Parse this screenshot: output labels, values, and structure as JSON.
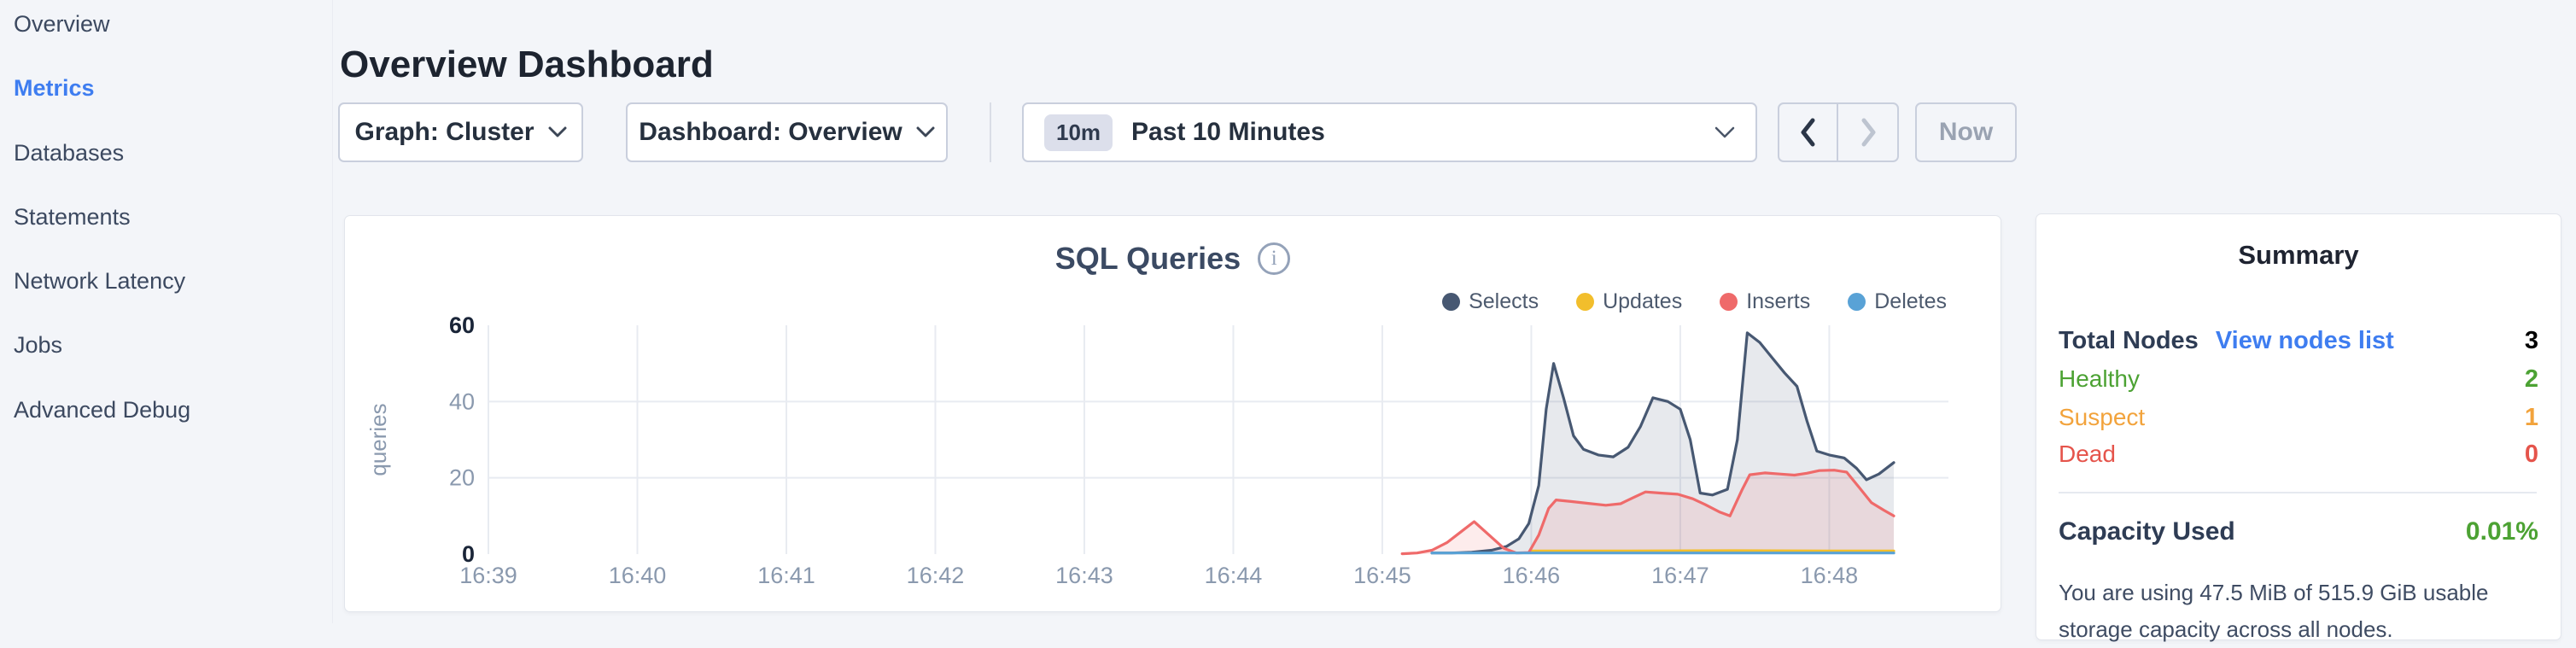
{
  "colors": {
    "link_blue": "#3E7DF0",
    "green": "#4CA233",
    "orange": "#F2A33C",
    "red": "#E5544B",
    "selects_navy": "#475872",
    "updates_yellow": "#F2BE2C",
    "inserts_red": "#EF6A6A",
    "deletes_blue": "#59A2D6"
  },
  "sidebar": {
    "items": [
      {
        "label": "Overview"
      },
      {
        "label": "Metrics"
      },
      {
        "label": "Databases"
      },
      {
        "label": "Statements"
      },
      {
        "label": "Network Latency"
      },
      {
        "label": "Jobs"
      },
      {
        "label": "Advanced Debug"
      }
    ],
    "active_index": 1
  },
  "header": {
    "title": "Overview Dashboard"
  },
  "controls": {
    "graph_dropdown_label": "Graph: Cluster",
    "dashboard_dropdown_label": "Dashboard: Overview",
    "time_badge": "10m",
    "time_label": "Past 10 Minutes",
    "now_label": "Now"
  },
  "chart_data": {
    "type": "area",
    "title": "SQL Queries",
    "ylabel": "queries",
    "ylim": [
      0,
      60
    ],
    "yticks": [
      {
        "v": 0,
        "label": "0",
        "emph": true
      },
      {
        "v": 20,
        "label": "20",
        "emph": false
      },
      {
        "v": 40,
        "label": "40",
        "emph": false
      },
      {
        "v": 60,
        "label": "60",
        "emph": true
      }
    ],
    "x_domain_seconds": [
      0,
      588
    ],
    "xticks": [
      {
        "t": 0,
        "label": "16:39"
      },
      {
        "t": 60,
        "label": "16:40"
      },
      {
        "t": 120,
        "label": "16:41"
      },
      {
        "t": 180,
        "label": "16:42"
      },
      {
        "t": 240,
        "label": "16:43"
      },
      {
        "t": 300,
        "label": "16:44"
      },
      {
        "t": 360,
        "label": "16:45"
      },
      {
        "t": 420,
        "label": "16:46"
      },
      {
        "t": 480,
        "label": "16:47"
      },
      {
        "t": 540,
        "label": "16:48"
      }
    ],
    "grid": true,
    "legend_position": "top-right",
    "series": [
      {
        "name": "Selects",
        "color": "#475872",
        "fill": "rgba(71,88,114,0.13)",
        "points": [
          [
            380,
            0.3
          ],
          [
            388,
            0.3
          ],
          [
            396,
            0.5
          ],
          [
            404,
            1
          ],
          [
            410,
            2
          ],
          [
            415,
            4
          ],
          [
            419,
            8
          ],
          [
            423,
            18
          ],
          [
            426,
            38
          ],
          [
            429,
            50
          ],
          [
            433,
            41
          ],
          [
            437,
            31
          ],
          [
            441,
            27.5
          ],
          [
            447,
            26
          ],
          [
            453,
            25.5
          ],
          [
            459,
            28
          ],
          [
            464,
            33.5
          ],
          [
            469,
            41
          ],
          [
            475,
            40
          ],
          [
            480,
            38
          ],
          [
            484,
            30
          ],
          [
            488,
            16
          ],
          [
            493,
            15.5
          ],
          [
            499,
            17
          ],
          [
            503,
            30
          ],
          [
            507,
            58
          ],
          [
            512,
            55.5
          ],
          [
            517,
            51.5
          ],
          [
            522,
            47.5
          ],
          [
            527,
            44
          ],
          [
            531,
            35
          ],
          [
            535,
            27
          ],
          [
            540,
            26
          ],
          [
            546,
            25.2
          ],
          [
            551,
            22.5
          ],
          [
            555,
            19.5
          ],
          [
            560,
            21
          ],
          [
            566,
            24
          ]
        ]
      },
      {
        "name": "Updates",
        "color": "#F2BE2C",
        "fill": null,
        "points": [
          [
            420,
            0.8
          ],
          [
            460,
            0.8
          ],
          [
            500,
            0.9
          ],
          [
            540,
            0.8
          ],
          [
            566,
            0.8
          ]
        ]
      },
      {
        "name": "Inserts",
        "color": "#EF6A6A",
        "fill": "rgba(239,106,106,0.13)",
        "points": [
          [
            368,
            0.1
          ],
          [
            374,
            0.3
          ],
          [
            380,
            1
          ],
          [
            386,
            3
          ],
          [
            392,
            6
          ],
          [
            397,
            8.5
          ],
          [
            403,
            5
          ],
          [
            409,
            1.5
          ],
          [
            414,
            0.3
          ],
          [
            419,
            0.4
          ],
          [
            423,
            5
          ],
          [
            427,
            12
          ],
          [
            430,
            14.2
          ],
          [
            436,
            13.8
          ],
          [
            443,
            13.3
          ],
          [
            450,
            12.8
          ],
          [
            456,
            13.2
          ],
          [
            461,
            14.8
          ],
          [
            466,
            16.3
          ],
          [
            472,
            16
          ],
          [
            479,
            15.7
          ],
          [
            485,
            14.5
          ],
          [
            490,
            13
          ],
          [
            496,
            11
          ],
          [
            500,
            10
          ],
          [
            505,
            17
          ],
          [
            508,
            20.8
          ],
          [
            514,
            21.3
          ],
          [
            520,
            21
          ],
          [
            526,
            20.7
          ],
          [
            531,
            21.2
          ],
          [
            536,
            21.9
          ],
          [
            542,
            22
          ],
          [
            547,
            21.5
          ],
          [
            552,
            17.5
          ],
          [
            557,
            13.5
          ],
          [
            562,
            11.5
          ],
          [
            566,
            10
          ]
        ]
      },
      {
        "name": "Deletes",
        "color": "#59A2D6",
        "fill": null,
        "points": [
          [
            380,
            0.3
          ],
          [
            440,
            0.3
          ],
          [
            500,
            0.3
          ],
          [
            566,
            0.3
          ]
        ]
      }
    ]
  },
  "summary": {
    "title": "Summary",
    "total_nodes_label": "Total Nodes",
    "view_nodes_link": "View nodes list",
    "total_nodes_value": "3",
    "rows": [
      {
        "label": "Healthy",
        "value": "2",
        "color": "#4CA233"
      },
      {
        "label": "Suspect",
        "value": "1",
        "color": "#F2A33C"
      },
      {
        "label": "Dead",
        "value": "0",
        "color": "#E5544B"
      }
    ],
    "capacity_label": "Capacity Used",
    "capacity_value": "0.01%",
    "capacity_description": "You are using 47.5 MiB of 515.9 GiB usable storage capacity across all nodes."
  }
}
